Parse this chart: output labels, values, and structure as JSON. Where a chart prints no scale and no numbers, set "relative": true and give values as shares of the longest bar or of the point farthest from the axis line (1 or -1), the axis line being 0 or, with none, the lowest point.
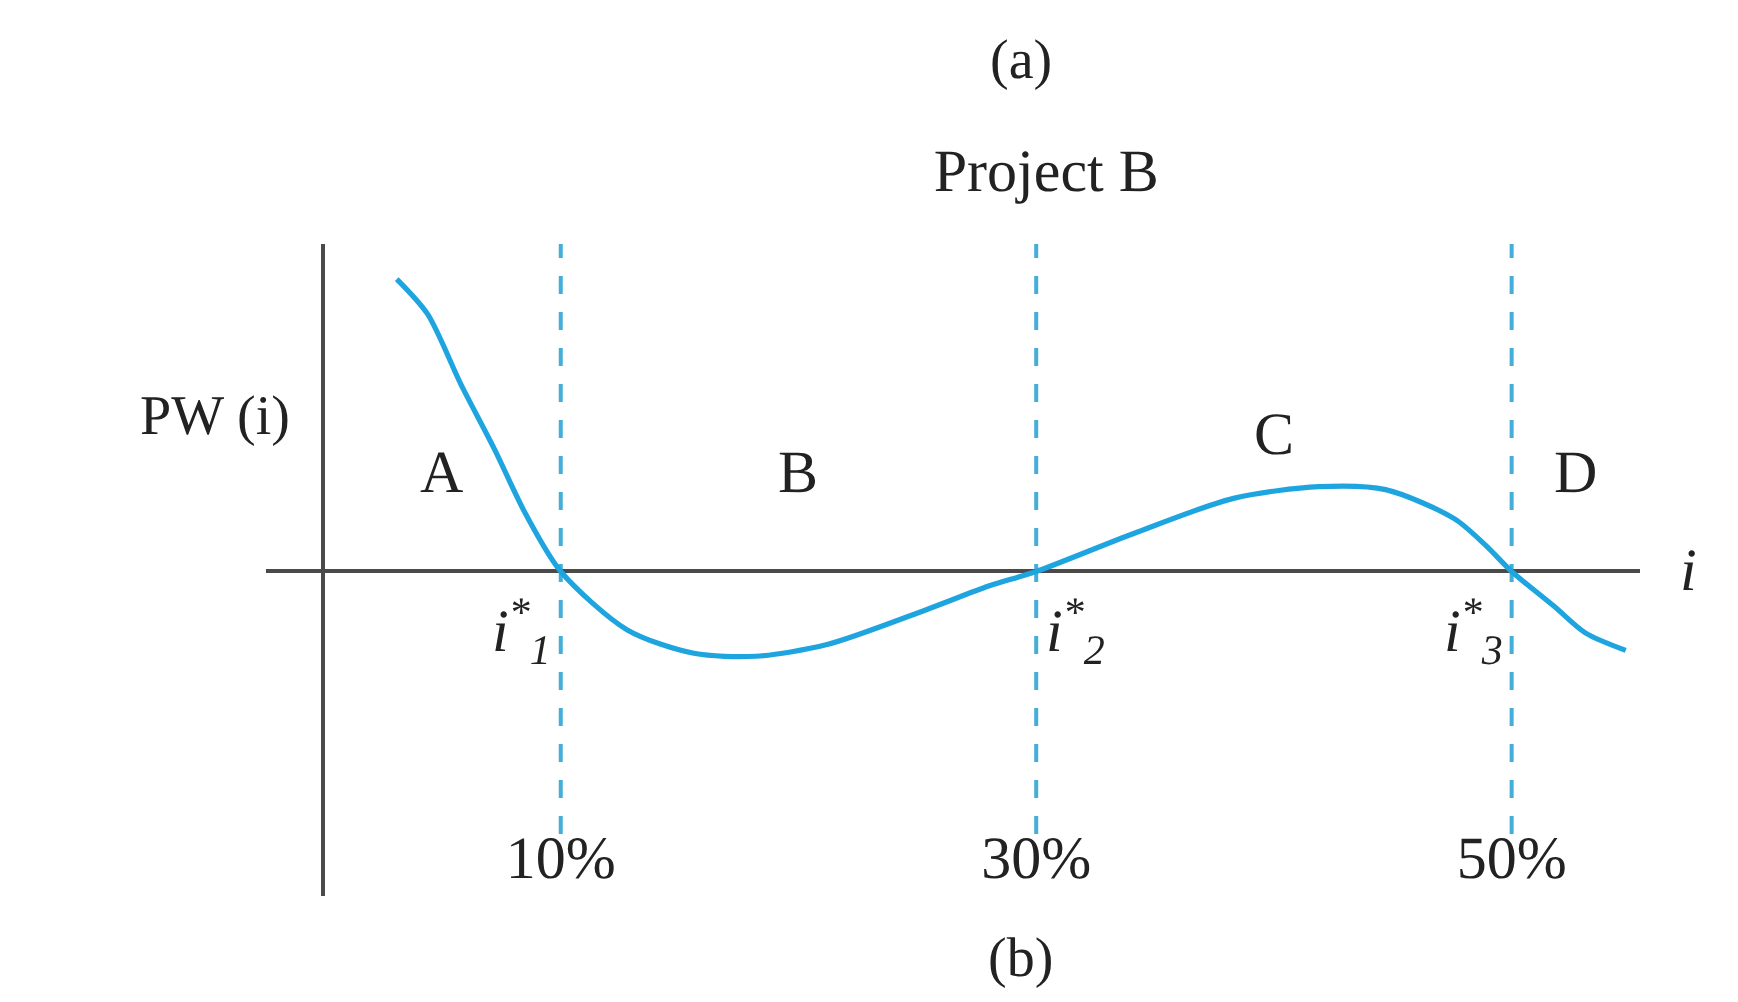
{
  "chart_data": {
    "type": "line",
    "title": "Project B",
    "ylabel": "PW (i)",
    "xlabel": "i",
    "annotations": [
      "(a)",
      "A",
      "B",
      "C",
      "D",
      "(b)"
    ],
    "x": [
      3.1,
      4.4,
      5.8,
      7.2,
      8.5,
      10,
      12.8,
      15.6,
      18.2,
      21.2,
      25.4,
      28,
      30,
      34.1,
      38.3,
      41.9,
      44.7,
      47.6,
      48.9,
      50,
      51.8,
      53.1,
      54.8
    ],
    "values": [
      1.0,
      0.88,
      0.64,
      0.42,
      0.2,
      0,
      -0.2,
      -0.28,
      -0.29,
      -0.25,
      -0.13,
      -0.05,
      0,
      0.13,
      0.25,
      0.29,
      0.28,
      0.18,
      0.09,
      0,
      -0.12,
      -0.21,
      -0.27
    ],
    "color": "#1ea5df",
    "relative": true,
    "xlim": [
      -2.4,
      55.4
    ],
    "xticks": [
      {
        "value": 10,
        "label": "10%"
      },
      {
        "value": 30,
        "label": "30%"
      },
      {
        "value": 50,
        "label": "50%"
      }
    ],
    "ref_lines": [
      {
        "axis": "x",
        "value": 10,
        "label": "i$^{*}$$_{1}$",
        "color": "#45aed8",
        "line_style": "dashed"
      },
      {
        "axis": "x",
        "value": 30,
        "label": "i$^{*}$$_{2}$",
        "color": "#45aed8",
        "line_style": "dashed"
      },
      {
        "axis": "x",
        "value": 50,
        "label": "i$^{*}$$_{3}$",
        "color": "#45aed8",
        "line_style": "dashed"
      }
    ]
  }
}
